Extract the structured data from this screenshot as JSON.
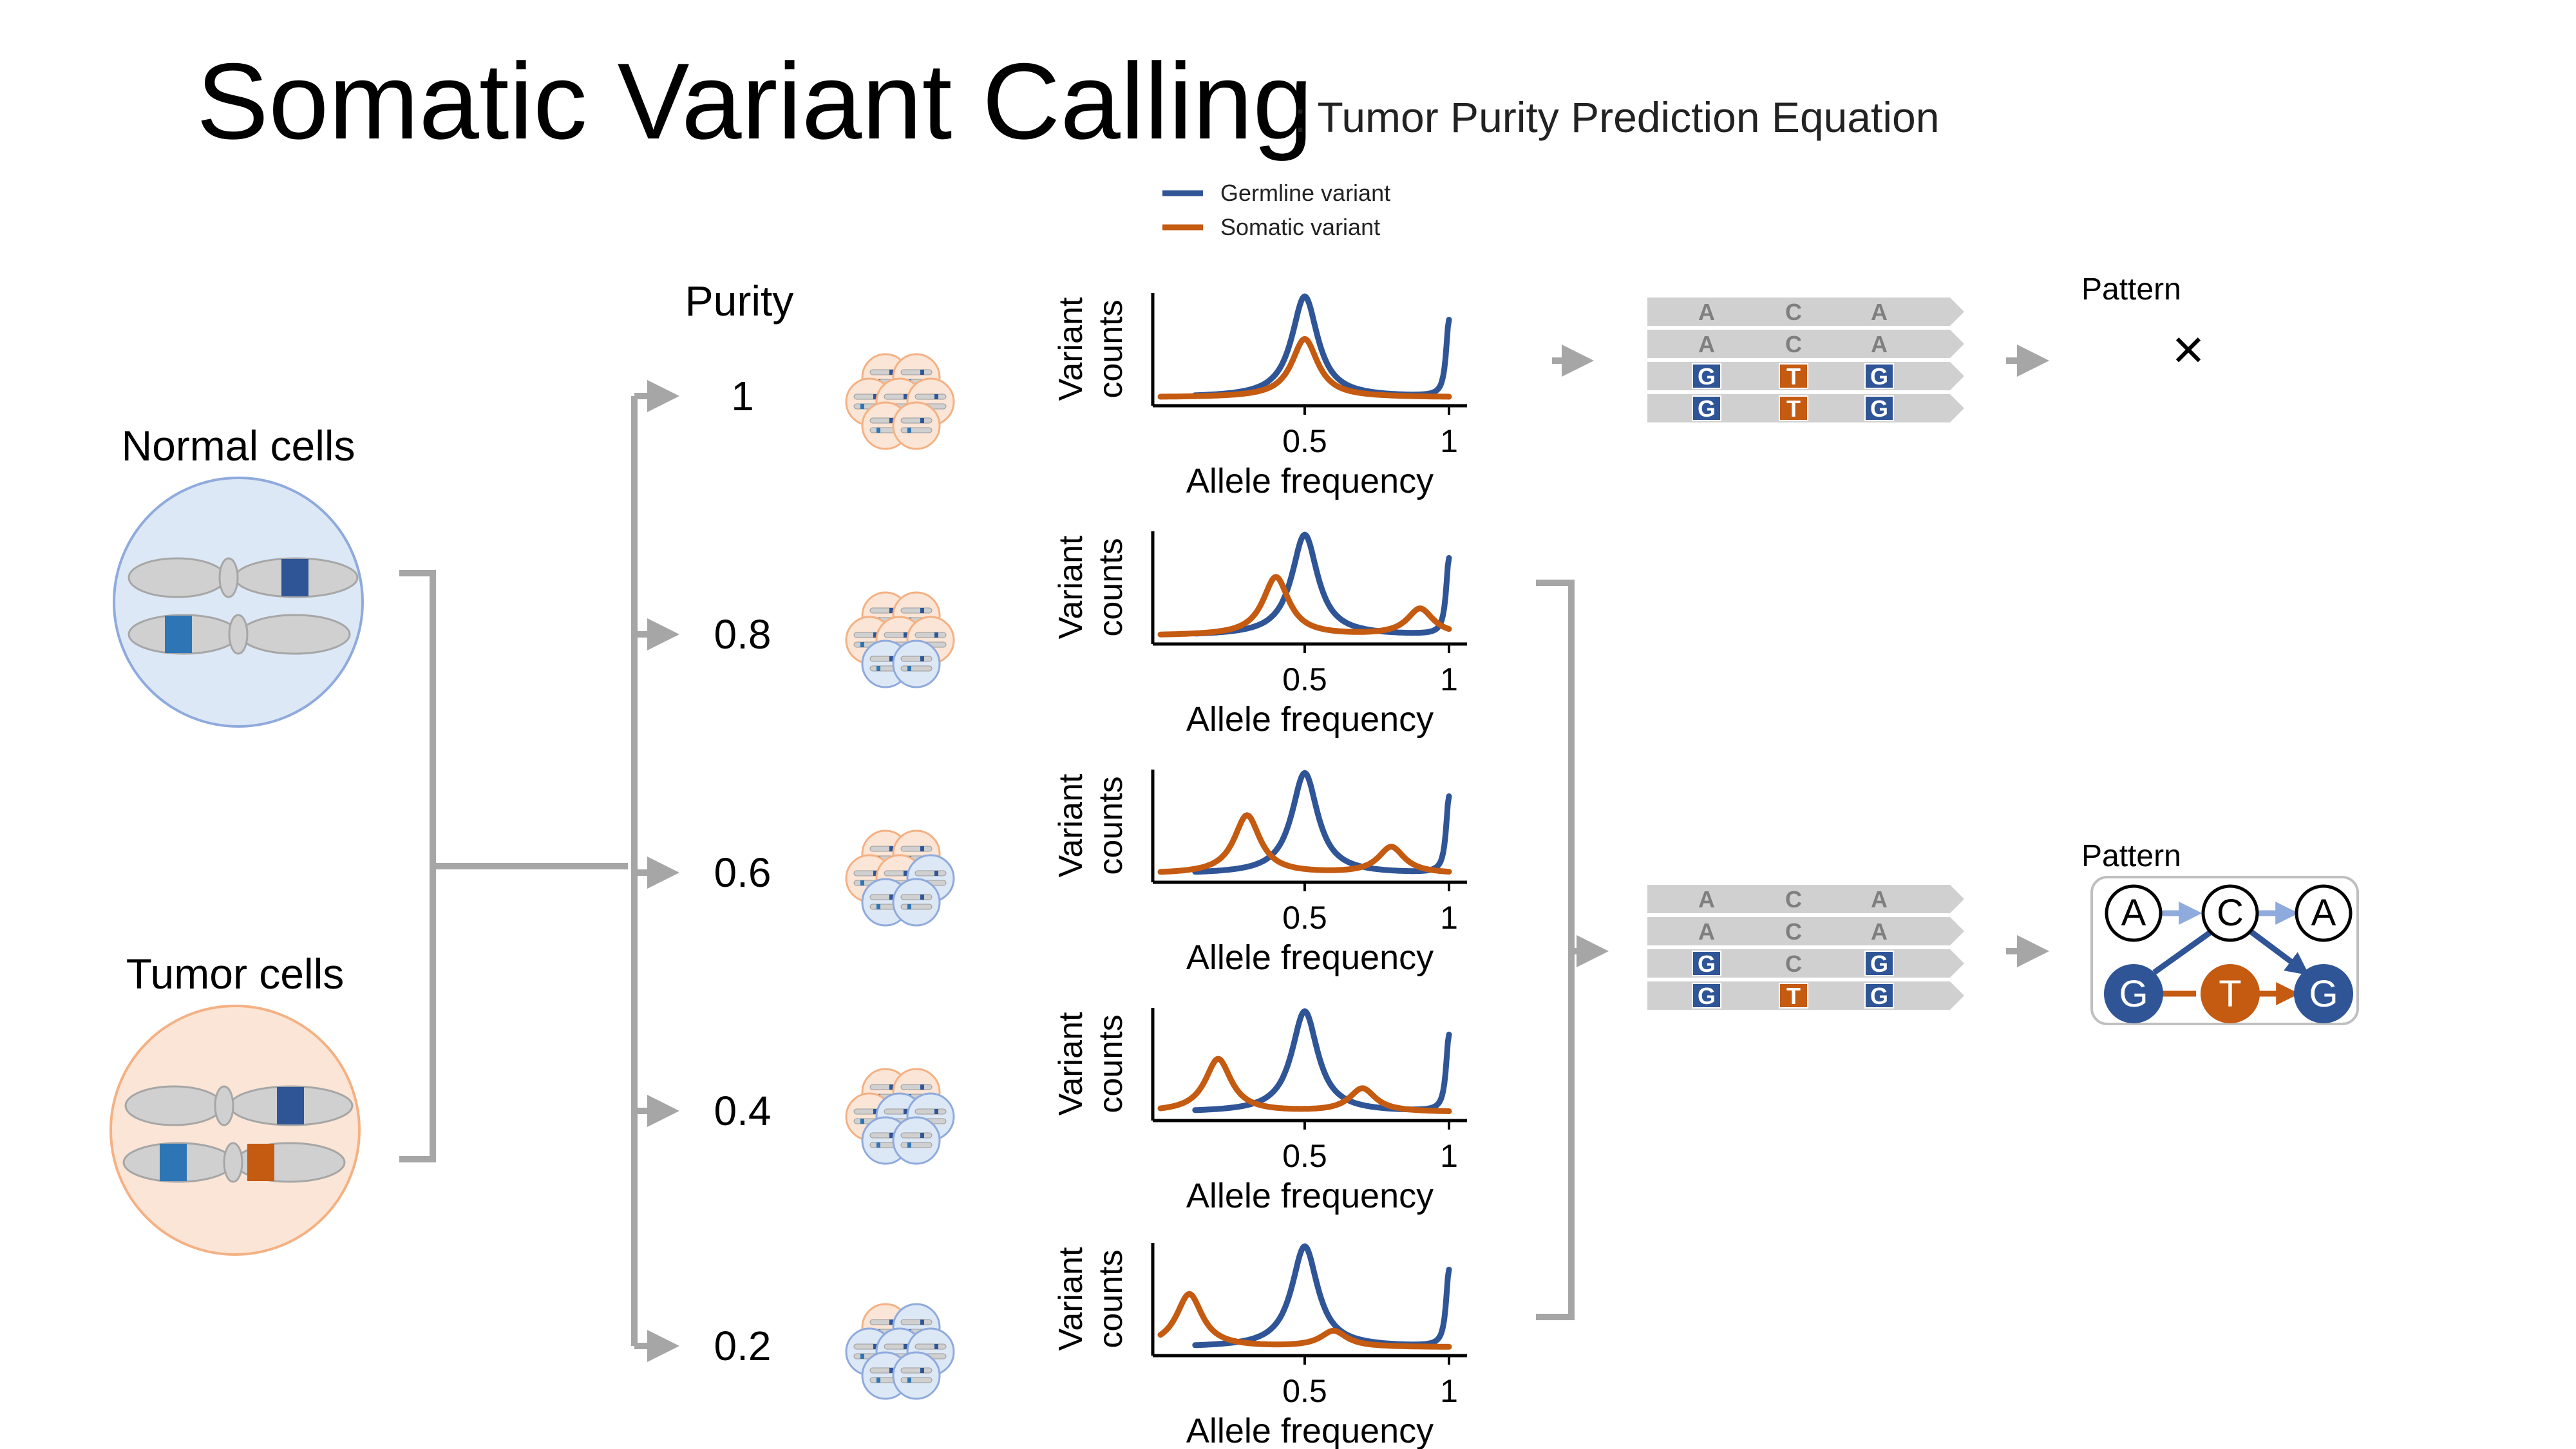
{
  "title": "Somatic Variant Calling",
  "subtitle": ": Tumor Purity Prediction Equation",
  "legend": {
    "germline": "Germline variant",
    "somatic": "Somatic variant"
  },
  "colors": {
    "germline": "#2f5597",
    "somatic": "#c55a11",
    "normal_fill": "#dde8f6",
    "normal_stroke": "#8faadc",
    "tumor_fill": "#fbe5d6",
    "tumor_stroke": "#f4b183",
    "chromosome": "#d0d0d0",
    "band_light": "#2e75b6",
    "connector": "#a6a6a6",
    "read_bar": "#d0d0d0",
    "read_letter": "#7f7f7f"
  },
  "cells": {
    "normal_label": "Normal cells",
    "tumor_label": "Tumor cells"
  },
  "purity": {
    "header": "Purity",
    "levels": [
      {
        "label": "1",
        "value": 1.0,
        "tumor_cells": 7
      },
      {
        "label": "0.8",
        "value": 0.8,
        "tumor_cells": 5
      },
      {
        "label": "0.6",
        "value": 0.6,
        "tumor_cells": 4
      },
      {
        "label": "0.4",
        "value": 0.4,
        "tumor_cells": 3
      },
      {
        "label": "0.2",
        "value": 0.2,
        "tumor_cells": 1
      }
    ]
  },
  "plot_axis": {
    "ylabel_line1": "Variant",
    "ylabel_line2": "counts",
    "xlabel": "Allele frequency",
    "xticks": [
      "0.5",
      "1"
    ]
  },
  "chart_data": [
    {
      "type": "line",
      "purity": 1.0,
      "xlabel": "Allele frequency",
      "ylabel": "Variant counts",
      "xlim": [
        0,
        1
      ],
      "xticks": [
        0.5,
        1
      ],
      "series": [
        {
          "name": "Germline variant",
          "peaks": [
            {
              "x": 0.5,
              "height": 0.95
            },
            {
              "x": 1.0,
              "height": 0.72
            }
          ]
        },
        {
          "name": "Somatic variant",
          "peaks": [
            {
              "x": 0.5,
              "height": 0.55
            }
          ]
        }
      ]
    },
    {
      "type": "line",
      "purity": 0.8,
      "xlabel": "Allele frequency",
      "ylabel": "Variant counts",
      "xlim": [
        0,
        1
      ],
      "xticks": [
        0.5,
        1
      ],
      "series": [
        {
          "name": "Germline variant",
          "peaks": [
            {
              "x": 0.5,
              "height": 0.95
            },
            {
              "x": 1.0,
              "height": 0.72
            }
          ]
        },
        {
          "name": "Somatic variant",
          "peaks": [
            {
              "x": 0.4,
              "height": 0.55
            },
            {
              "x": 0.9,
              "height": 0.25
            }
          ]
        }
      ]
    },
    {
      "type": "line",
      "purity": 0.6,
      "xlabel": "Allele frequency",
      "ylabel": "Variant counts",
      "xlim": [
        0,
        1
      ],
      "xticks": [
        0.5,
        1
      ],
      "series": [
        {
          "name": "Germline variant",
          "peaks": [
            {
              "x": 0.5,
              "height": 0.95
            },
            {
              "x": 1.0,
              "height": 0.72
            }
          ]
        },
        {
          "name": "Somatic variant",
          "peaks": [
            {
              "x": 0.3,
              "height": 0.55
            },
            {
              "x": 0.8,
              "height": 0.25
            }
          ]
        }
      ]
    },
    {
      "type": "line",
      "purity": 0.4,
      "xlabel": "Allele frequency",
      "ylabel": "Variant counts",
      "xlim": [
        0,
        1
      ],
      "xticks": [
        0.5,
        1
      ],
      "series": [
        {
          "name": "Germline variant",
          "peaks": [
            {
              "x": 0.5,
              "height": 0.95
            },
            {
              "x": 1.0,
              "height": 0.72
            }
          ]
        },
        {
          "name": "Somatic variant",
          "peaks": [
            {
              "x": 0.2,
              "height": 0.5
            },
            {
              "x": 0.7,
              "height": 0.22
            }
          ]
        }
      ]
    },
    {
      "type": "line",
      "purity": 0.2,
      "xlabel": "Allele frequency",
      "ylabel": "Variant counts",
      "xlim": [
        0,
        1
      ],
      "xticks": [
        0.5,
        1
      ],
      "series": [
        {
          "name": "Germline variant",
          "peaks": [
            {
              "x": 0.5,
              "height": 0.95
            },
            {
              "x": 1.0,
              "height": 0.72
            }
          ]
        },
        {
          "name": "Somatic variant",
          "peaks": [
            {
              "x": 0.1,
              "height": 0.5
            },
            {
              "x": 0.6,
              "height": 0.15
            }
          ]
        }
      ]
    }
  ],
  "reads": {
    "top": [
      [
        "A",
        "C",
        "A"
      ],
      [
        "A",
        "C",
        "A"
      ],
      [
        "G",
        "T",
        "G"
      ],
      [
        "G",
        "T",
        "G"
      ]
    ],
    "bottom": [
      [
        "A",
        "C",
        "A"
      ],
      [
        "A",
        "C",
        "A"
      ],
      [
        "G",
        "C",
        "G"
      ],
      [
        "G",
        "T",
        "G"
      ]
    ]
  },
  "pattern": {
    "label": "Pattern",
    "no_pattern_symbol": "×",
    "graph": {
      "top_nodes": [
        "A",
        "C",
        "A"
      ],
      "bottom_nodes": [
        "G",
        "T",
        "G"
      ]
    }
  }
}
